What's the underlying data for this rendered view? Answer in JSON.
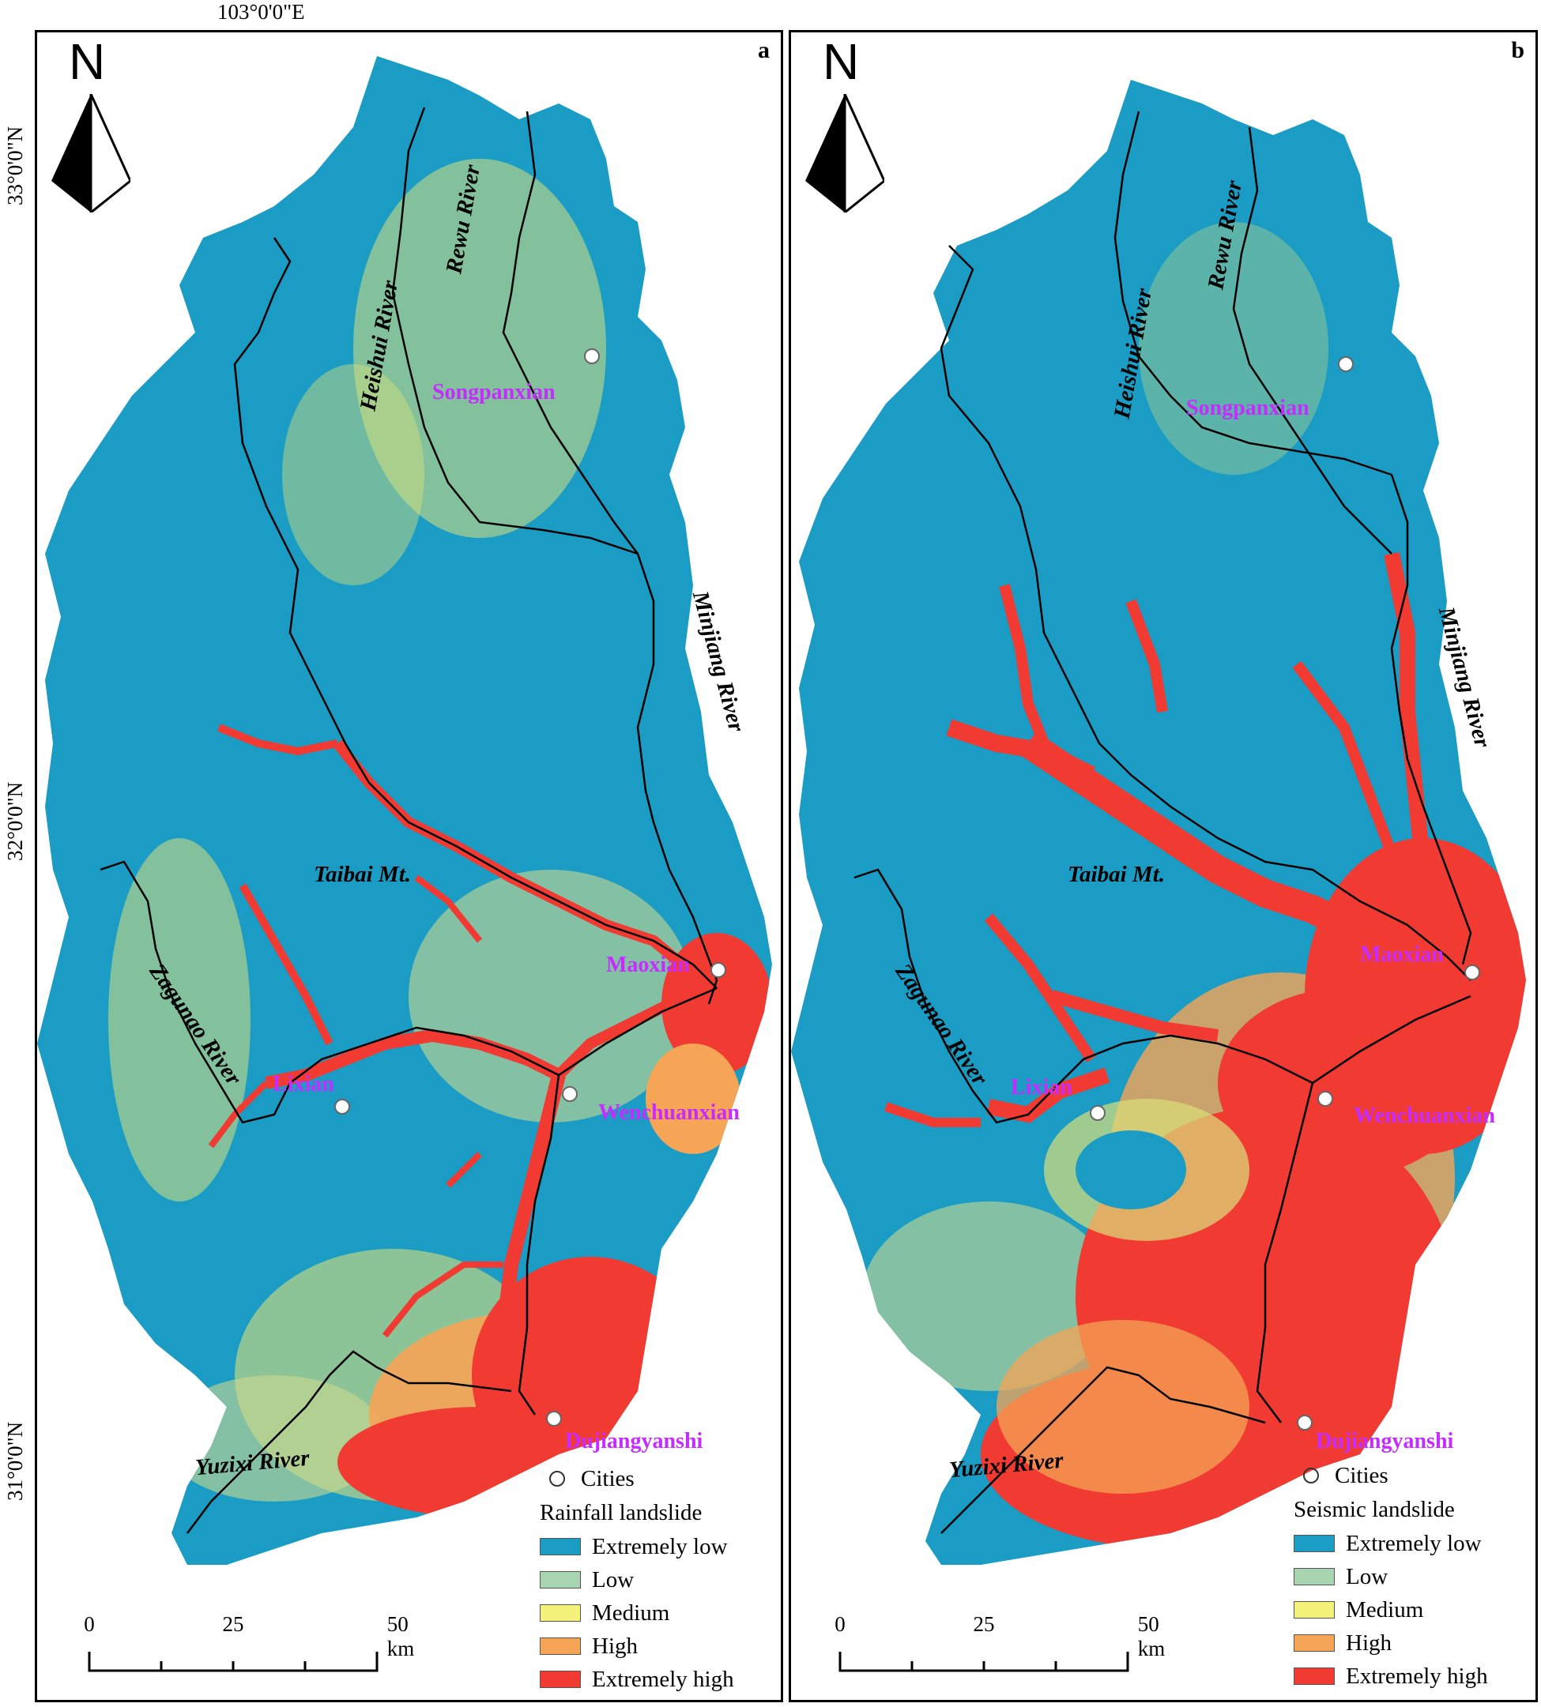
{
  "graticule": {
    "longitude": "103°0'0\"E",
    "latitudes": [
      "33°0'0\"N",
      "32°0'0\"N",
      "31°0'0\"N"
    ]
  },
  "panels": [
    {
      "letter": "a",
      "north": "N",
      "legend": {
        "cities_label": "Cities",
        "title": "Rainfall landslide",
        "classes": [
          {
            "label": "Extremely low",
            "color": "#1a9cc4"
          },
          {
            "label": "Low",
            "color": "#a8d4b0"
          },
          {
            "label": "Medium",
            "color": "#f4f27a"
          },
          {
            "label": "High",
            "color": "#f6a455"
          },
          {
            "label": "Extremely high",
            "color": "#f03a32"
          }
        ]
      },
      "scale": {
        "ticks": [
          "0",
          "25",
          "50 km"
        ]
      }
    },
    {
      "letter": "b",
      "north": "N",
      "legend": {
        "cities_label": "Cities",
        "title": "Seismic landslide",
        "classes": [
          {
            "label": "Extremely low",
            "color": "#1a9cc4"
          },
          {
            "label": "Low",
            "color": "#a8d4b0"
          },
          {
            "label": "Medium",
            "color": "#f4f27a"
          },
          {
            "label": "High",
            "color": "#f6a455"
          },
          {
            "label": "Extremely high",
            "color": "#f03a32"
          }
        ]
      },
      "scale": {
        "ticks": [
          "0",
          "25",
          "50 km"
        ]
      }
    }
  ],
  "rivers": {
    "heishui": "Heishui River",
    "rewu": "Rewu River",
    "minjiang": "Minjiang River",
    "zagunao": "Zagunao River",
    "yuzixi": "Yuzixi River"
  },
  "places": {
    "taibai": "Taibai Mt."
  },
  "cities": {
    "songpanxian": "Songpanxian",
    "maoxian": "Maoxian",
    "lixian": "Lixian",
    "wenchuanxian": "Wenchuanxian",
    "dujiangyanshi": "Dujiangyanshi"
  }
}
